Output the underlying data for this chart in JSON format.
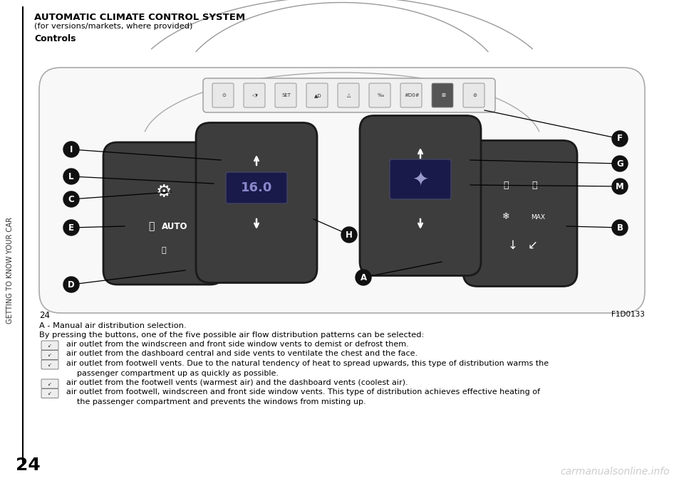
{
  "title": "AUTOMATIC CLIMATE CONTROL SYSTEM",
  "subtitle": "(for versions/markets, where provided)",
  "section": "Controls",
  "page_number": "24",
  "fig_id": "F1D0133",
  "sidebar_text": "GETTING TO KNOW YOUR CAR",
  "body_line1": "A - Manual air distribution selection.",
  "body_line2": "By pressing the buttons, one of the five possible air flow distribution patterns can be selected:",
  "bullet1": "air outlet from the windscreen and front side window vents to demist or defrost them.",
  "bullet2": "air outlet from the dashboard central and side vents to ventilate the chest and the face.",
  "bullet3a": "air outlet from footwell vents. Due to the natural tendency of heat to spread upwards, this type of distribution warms the",
  "bullet3b": "passenger compartment up as quickly as possible.",
  "bullet4": "air outlet from the footwell vents (warmest air) and the dashboard vents (coolest air).",
  "bullet5a": "air outlet from footwell, windscreen and front side window vents. This type of distribution achieves effective heating of",
  "bullet5b": "the passenger compartment and prevents the windows from misting up.",
  "watermark": "carmanualsonline.info",
  "bg_color": "#ffffff",
  "text_color": "#000000",
  "pod_color": "#3d3d3d",
  "pod_dark": "#282828",
  "pod_edge": "#1a1a1a",
  "display_bg": "#1a1a4a",
  "display_text": "#8888cc",
  "strip_bg": "#f0f0f0",
  "strip_edge": "#999999",
  "label_bg": "#111111",
  "label_fg": "#ffffff",
  "car_outline": "#aaaaaa",
  "car_fill": "#f8f8f8"
}
